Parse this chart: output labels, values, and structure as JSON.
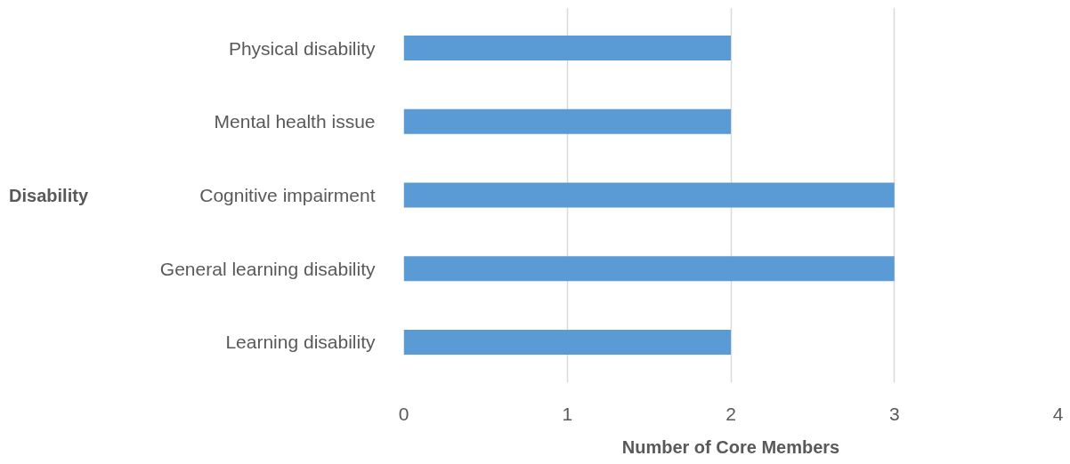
{
  "chart_data": {
    "type": "bar",
    "orientation": "horizontal",
    "xlabel": "Number of Core Members",
    "ylabel": "Disability",
    "categories": [
      "Physical disability",
      "Mental health issue",
      "Cognitive impairment",
      "General learning disability",
      "Learning disability"
    ],
    "values": [
      2,
      2,
      3,
      3,
      2
    ],
    "color": "#5b9bd5",
    "xlim": [
      0,
      4
    ],
    "xticks": [
      0,
      1,
      2,
      3,
      4
    ],
    "grid": "x"
  }
}
